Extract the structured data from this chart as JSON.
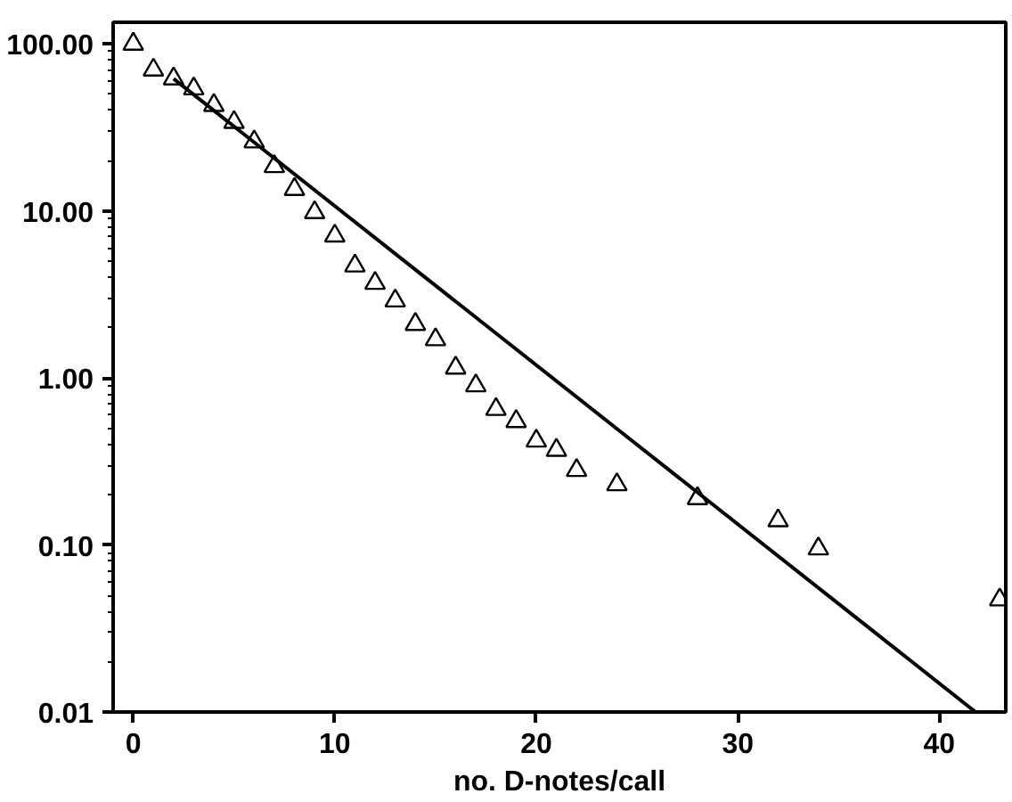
{
  "chart_data": {
    "type": "scatter",
    "xlabel": "no. D-notes/call",
    "log": "y",
    "xlim": [
      -1,
      43.3
    ],
    "ylim": [
      0.01,
      135
    ],
    "xticks": [
      0,
      10,
      20,
      30,
      40
    ],
    "yticks": [
      {
        "value": 0.01,
        "label": "0.01"
      },
      {
        "value": 0.1,
        "label": "0.10"
      },
      {
        "value": 1,
        "label": "1.00"
      },
      {
        "value": 10,
        "label": "10.00"
      },
      {
        "value": 100,
        "label": "100.00"
      }
    ],
    "grid": false,
    "series": [
      {
        "marker": "triangle",
        "color": "#000000",
        "x": [
          0,
          1,
          2,
          3,
          4,
          5,
          6,
          7,
          8,
          9,
          10,
          11,
          12,
          13,
          14,
          15,
          16,
          17,
          18,
          19,
          20,
          21,
          22,
          24,
          28,
          32,
          34,
          43
        ],
        "values": [
          100,
          70,
          62,
          54,
          43,
          34,
          26,
          18.5,
          13.5,
          9.8,
          7.1,
          4.7,
          3.7,
          2.9,
          2.1,
          1.7,
          1.15,
          0.9,
          0.65,
          0.55,
          0.42,
          0.37,
          0.28,
          0.23,
          0.19,
          0.14,
          0.095,
          0.047
        ]
      },
      {
        "type": "line",
        "marker": "none",
        "color": "#000000",
        "x": [
          2,
          41.8
        ],
        "values": [
          62,
          0.01
        ]
      }
    ]
  }
}
